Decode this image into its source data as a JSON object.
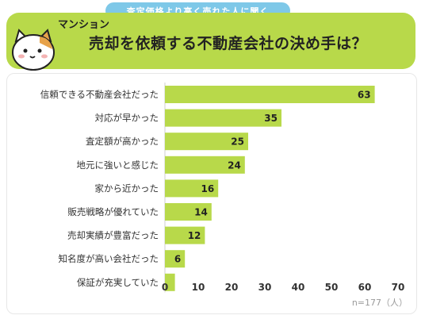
{
  "header": {
    "pill_text": "査定価格より高く売れた人に聞く",
    "subtitle": "マンション",
    "title": "売却を依頼する不動産会社の決め手は？"
  },
  "note": "n=177（人）",
  "colors": {
    "bar": "#b8d94a",
    "header_bg": "#b8d94a",
    "pill_bg": "#7ec8e8"
  },
  "chart_data": {
    "type": "bar",
    "orientation": "horizontal",
    "categories": [
      "信頼できる不動産会社だった",
      "対応が早かった",
      "査定額が高かった",
      "地元に強いと感じた",
      "家から近かった",
      "販売戦略が優れていた",
      "売却実績が豊富だった",
      "知名度が高い会社だった",
      "保証が充実していた"
    ],
    "values": [
      63,
      35,
      25,
      24,
      16,
      14,
      12,
      6,
      3
    ],
    "value_labels": [
      "63",
      "35",
      "25",
      "24",
      "16",
      "14",
      "12",
      "6",
      ""
    ],
    "xlim": [
      0,
      70
    ],
    "xticks": [
      0,
      10,
      20,
      30,
      40,
      50,
      60,
      70
    ],
    "grid": false
  }
}
